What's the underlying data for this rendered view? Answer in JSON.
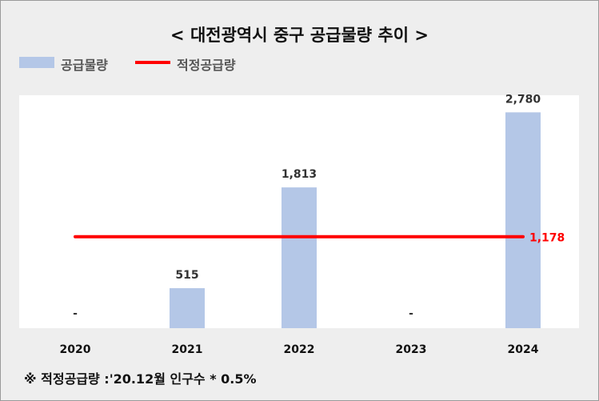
{
  "title": "< 대전광역시 중구 공급물량 추이 >",
  "legend": {
    "bar_label": "공급물량",
    "line_label": "적정공급량"
  },
  "footnote": "※ 적정공급량 :'20.12월 인구수 * 0.5%",
  "colors": {
    "bar": "#b4c7e7",
    "line": "#ff0000",
    "line_label": "#ff0000"
  },
  "chart_data": {
    "type": "bar",
    "categories": [
      "2020",
      "2021",
      "2022",
      "2023",
      "2024"
    ],
    "series": [
      {
        "name": "공급물량",
        "values": [
          0,
          515,
          1813,
          0,
          2780
        ],
        "labels": [
          "-",
          "515",
          "1,813",
          "-",
          "2,780"
        ]
      },
      {
        "name": "적정공급량",
        "type": "line",
        "value": 1178,
        "label": "1,178"
      }
    ],
    "ylim": [
      0,
      3000
    ],
    "grid": false,
    "legend_position": "top-left"
  }
}
